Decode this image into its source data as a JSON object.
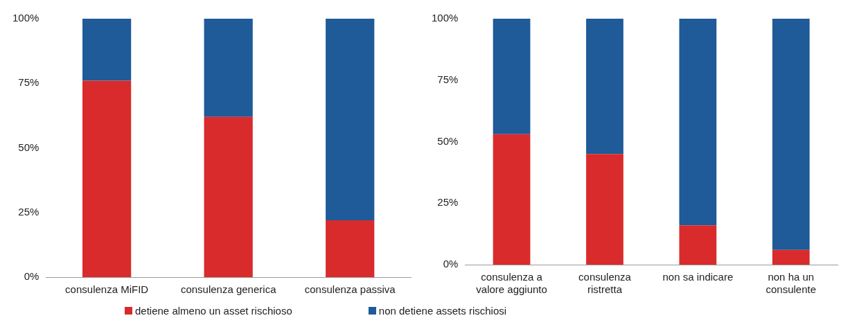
{
  "chart_data": [
    {
      "type": "bar",
      "stacked": true,
      "categories": [
        "consulenza MiFID",
        "consulenza generica",
        "consulenza passiva"
      ],
      "series": [
        {
          "name": "detiene almeno un asset rischioso",
          "color": "#d92b2b",
          "values": [
            76,
            62,
            22
          ]
        },
        {
          "name": "non detiene assets rischiosi",
          "color": "#1f5a99",
          "values": [
            24,
            38,
            78
          ]
        }
      ],
      "ylim": [
        0,
        100
      ],
      "yticks": [
        {
          "value": 0,
          "label": "0%"
        },
        {
          "value": 25,
          "label": "25%"
        },
        {
          "value": 50,
          "label": "50%"
        },
        {
          "value": 75,
          "label": "75%"
        },
        {
          "value": 100,
          "label": "100%"
        }
      ],
      "legend": "bottom"
    },
    {
      "type": "bar",
      "stacked": true,
      "categories": [
        "consulenza a valore aggiunto",
        "consulenza ristretta",
        "non sa indicare",
        "non ha un consulente"
      ],
      "series": [
        {
          "color": "#d92b2b",
          "values": [
            53,
            45,
            16,
            6
          ]
        },
        {
          "color": "#1f5a99",
          "values": [
            47,
            55,
            84,
            94
          ]
        }
      ],
      "ylim": [
        0,
        100
      ],
      "yticks": [
        {
          "value": 0,
          "label": "0%"
        },
        {
          "value": 25,
          "label": "25%"
        },
        {
          "value": 50,
          "label": "50%"
        },
        {
          "value": 75,
          "label": "75%"
        },
        {
          "value": 100,
          "label": "100%"
        }
      ]
    }
  ]
}
